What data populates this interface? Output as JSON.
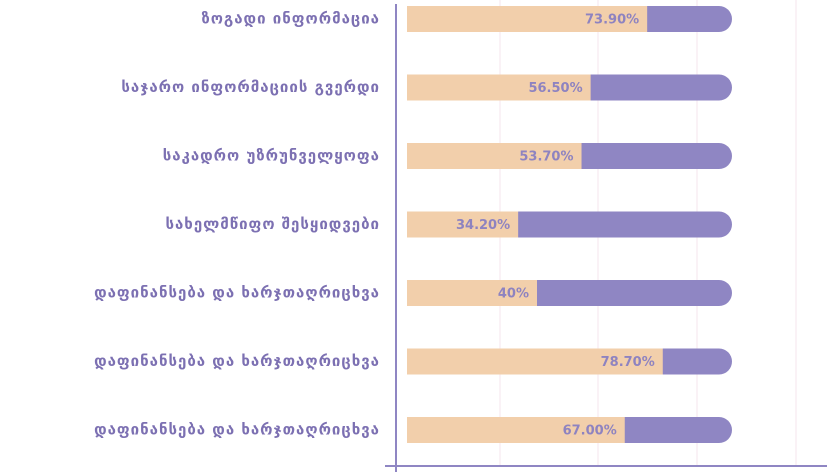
{
  "chart_data": {
    "type": "bar",
    "orientation": "horizontal",
    "categories": [
      "ზოგადი  ინფორმაცია",
      "საჯარო ინფორმაციის გვერდი",
      "საკადრო უზრუნველყოფა",
      "სახელმწიფო შესყიდვები",
      "დაფინანსება და ხარჯთაღრიცხვა",
      "დაფინანსება და ხარჯთაღრიცხვა",
      "დაფინანსება და ხარჯთაღრიცხვა"
    ],
    "values": [
      73.9,
      56.5,
      53.7,
      34.2,
      40,
      78.7,
      67.0
    ],
    "value_labels": [
      "73.90%",
      "56.50%",
      "53.70%",
      "34.20%",
      "40%",
      "78.70%",
      "67.00%"
    ],
    "color": "#f2cfab",
    "track_color": "#8f86c3",
    "xlim": [
      0,
      100
    ]
  }
}
